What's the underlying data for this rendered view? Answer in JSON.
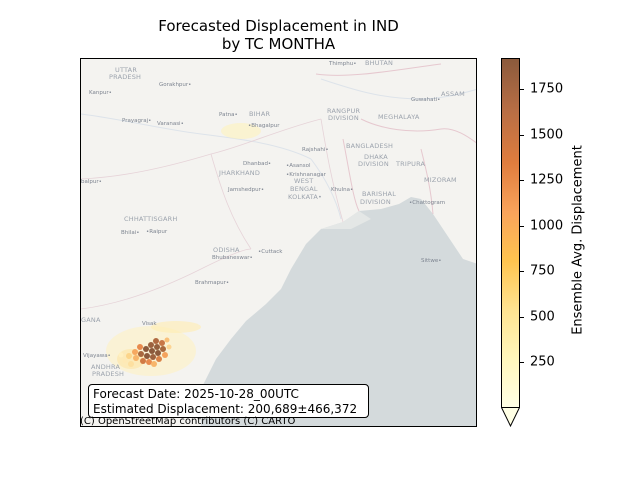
{
  "title": {
    "line1": "Forecasted Displacement in IND",
    "line2": "by TC MONTHA"
  },
  "map": {
    "labels": {
      "uttar_pradesh_1": "UTTAR",
      "uttar_pradesh_2": "PRADESH",
      "kanpur": "Kanpur•",
      "gorakhpur": "Gorakhpur•",
      "prayagraj": "Prayagraj•",
      "varanasi": "Varanasi•",
      "patna": "Patna•",
      "bihar": "BIHAR",
      "bhagalpur": "•Bhagalpur",
      "thimphu": "Thimphu•",
      "bhutan": "BHUTAN",
      "guwahati": "Guwahati•",
      "assam": "ASSAM",
      "rangpur_1": "RANGPUR",
      "rangpur_2": "DIVISION",
      "meghalaya": "MEGHALAYA",
      "rajshahi": "Rajshahi•",
      "bangladesh": "BANGLADESH",
      "dhaka_1": "DHAKA",
      "dhaka_2": "DIVISION",
      "tripura": "TRIPURA",
      "jharkhand": "JHARKHAND",
      "dhanbad": "Dhanbad•",
      "asansol": "•Asansol",
      "krishnanagar": "•Krishnanagar",
      "west_bengal_1": "WEST",
      "west_bengal_2": "BENGAL",
      "kolkata": "KOLKATA•",
      "jamshedpur": "Jamshedpur•",
      "khulna": "Khulna•",
      "barishal_1": "BARISHAL",
      "barishal_2": "DIVISION",
      "mizoram": "MIZORAM",
      "chattogram": "•Chattogram",
      "jabalpur": "balpur•",
      "chhattisgarh": "CHHATTISGARH",
      "bhilai": "Bhilai•",
      "raipur": "•Raipur",
      "odisha": "ODISHA",
      "bhubaneswar": "Bhubaneswar•",
      "cuttack": "•Cuttack",
      "brahmapur": "Brahmapur•",
      "sittwe": "Sittwe•",
      "telangana": "GANA",
      "visakhapatnam": "Visak",
      "vijayawada": "Vijayawa•",
      "andhra_1": "ANDHRA",
      "andhra_2": "PRADESH"
    }
  },
  "info_box": {
    "forecast_date": "Forecast Date: 2025-10-28_00UTC",
    "estimated_displacement": "Estimated Displacement: 200,689±466,372"
  },
  "credit": "(C) OpenStreetMap contributors (C) CARTO",
  "colorbar": {
    "label": "Ensemble Avg. Displacement",
    "min": 0,
    "max": 1920,
    "ticks": [
      250,
      500,
      750,
      1000,
      1250,
      1500,
      1750
    ],
    "tick_labels": [
      "250",
      "500",
      "750",
      "1000",
      "1250",
      "1500",
      "1750"
    ],
    "colormap": [
      "#ffffe5",
      "#fff7bc",
      "#fee391",
      "#fec44f",
      "#f9a35b",
      "#e07d3e",
      "#b86e45",
      "#8b5a3c"
    ]
  }
}
